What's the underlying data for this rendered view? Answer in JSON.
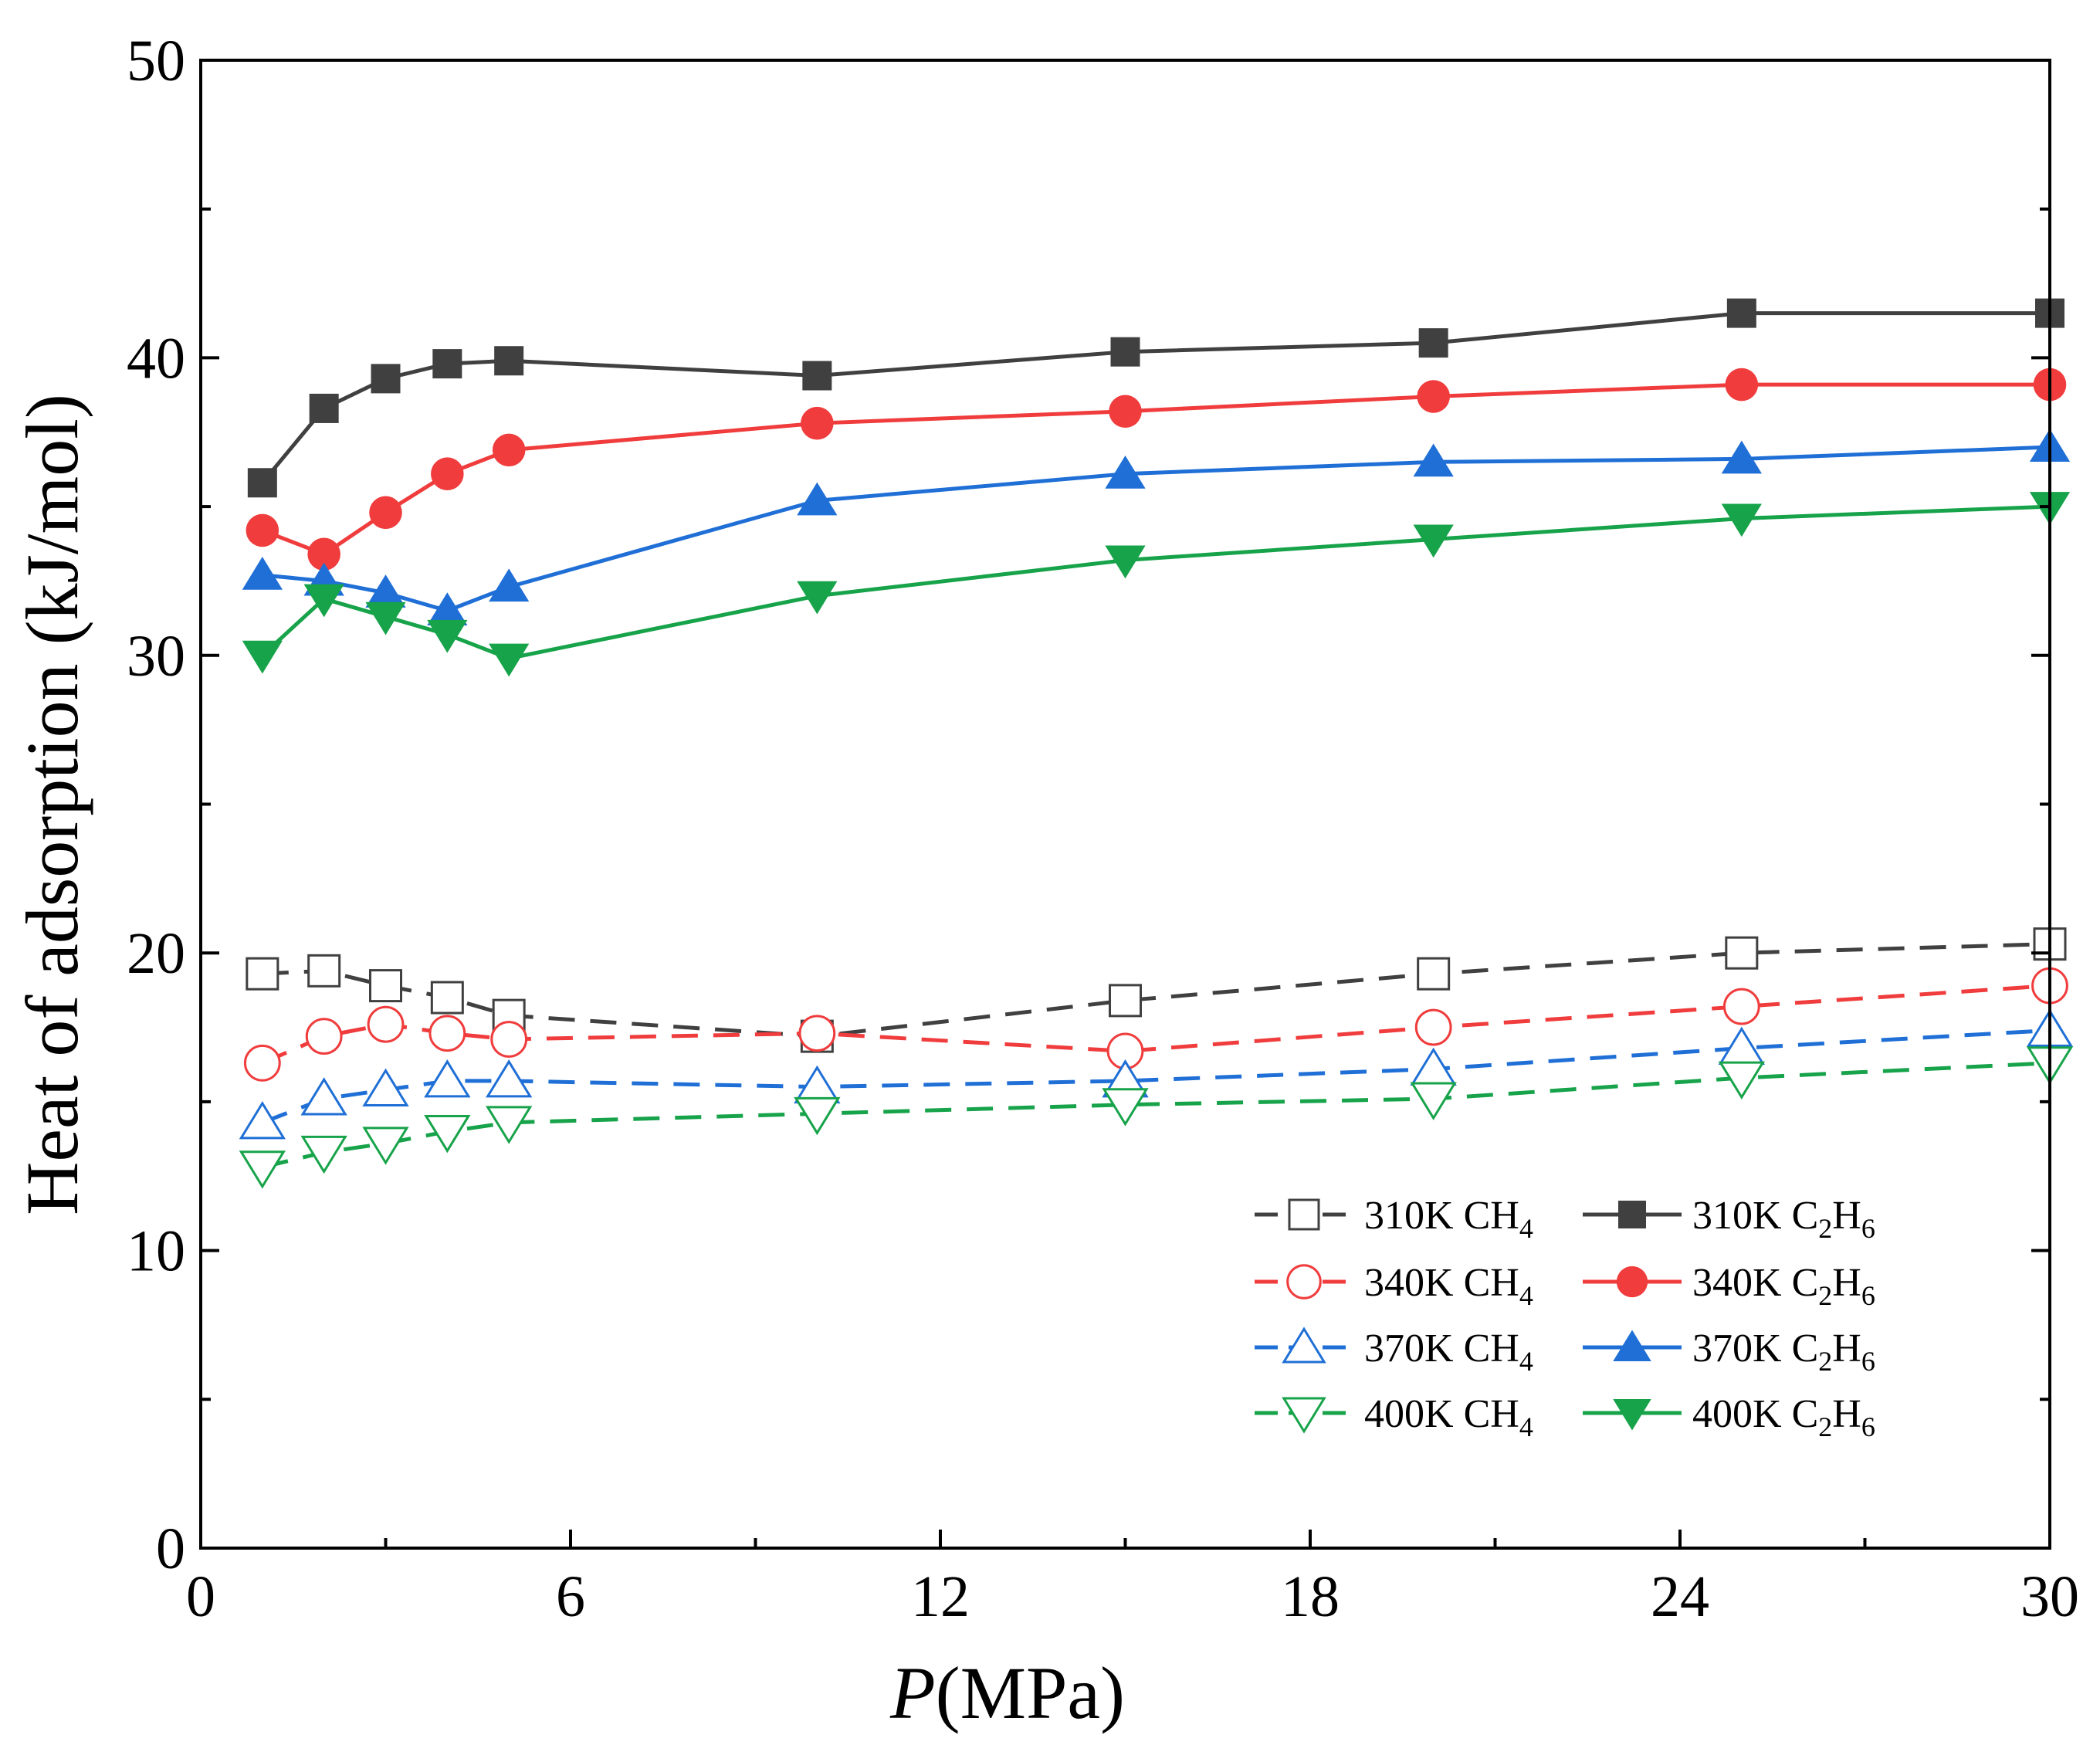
{
  "chart_data": {
    "type": "line",
    "title": "",
    "xlabel": "P",
    "xlabel_unit": "(MPa)",
    "ylabel": "Heat of adsorption (kJ/mol)",
    "xlim": [
      0,
      30
    ],
    "ylim": [
      0,
      50
    ],
    "x_ticks": [
      "0",
      "6",
      "12",
      "18",
      "24",
      "30"
    ],
    "y_ticks": [
      "0",
      "10",
      "20",
      "30",
      "40",
      "50"
    ],
    "grid": false,
    "legend_position": "bottom-right",
    "x": [
      1,
      2,
      3,
      4,
      5,
      10,
      15,
      20,
      25,
      30
    ],
    "series": [
      {
        "name": "310K CH4",
        "temp": "310K ",
        "gas_main": "CH",
        "sub1": "4",
        "mid": "",
        "sub2": "",
        "color": "#404040",
        "marker": "square",
        "filled": false,
        "dashed": true,
        "values": [
          19.3,
          19.4,
          18.9,
          18.5,
          17.9,
          17.2,
          18.4,
          19.3,
          20.0,
          20.3
        ]
      },
      {
        "name": "340K CH4",
        "temp": "340K ",
        "gas_main": "CH",
        "sub1": "4",
        "mid": "",
        "sub2": "",
        "color": "#f03c3c",
        "marker": "circle",
        "filled": false,
        "dashed": true,
        "values": [
          16.3,
          17.2,
          17.6,
          17.3,
          17.1,
          17.3,
          16.7,
          17.5,
          18.2,
          18.9
        ]
      },
      {
        "name": "370K CH4",
        "temp": "370K ",
        "gas_main": "CH",
        "sub1": "4",
        "mid": "",
        "sub2": "",
        "color": "#1f6fd6",
        "marker": "triangle-up",
        "filled": false,
        "dashed": true,
        "values": [
          14.3,
          15.1,
          15.4,
          15.7,
          15.7,
          15.5,
          15.7,
          16.1,
          16.8,
          17.4
        ]
      },
      {
        "name": "400K CH4",
        "temp": "400K ",
        "gas_main": "CH",
        "sub1": "4",
        "mid": "",
        "sub2": "",
        "color": "#17a34a",
        "marker": "triangle-down",
        "filled": false,
        "dashed": true,
        "values": [
          12.8,
          13.3,
          13.6,
          14.0,
          14.3,
          14.6,
          14.9,
          15.1,
          15.8,
          16.3
        ]
      },
      {
        "name": "310K C2H6",
        "temp": "310K ",
        "gas_main": "C",
        "sub1": "2",
        "mid": "H",
        "sub2": "6",
        "color": "#404040",
        "marker": "square",
        "filled": true,
        "dashed": false,
        "values": [
          35.8,
          38.3,
          39.3,
          39.8,
          39.9,
          39.4,
          40.2,
          40.5,
          41.5,
          41.5
        ]
      },
      {
        "name": "340K C2H6",
        "temp": "340K ",
        "gas_main": "C",
        "sub1": "2",
        "mid": "H",
        "sub2": "6",
        "color": "#f03c3c",
        "marker": "circle",
        "filled": true,
        "dashed": false,
        "values": [
          34.2,
          33.4,
          34.8,
          36.1,
          36.9,
          37.8,
          38.2,
          38.7,
          39.1,
          39.1
        ]
      },
      {
        "name": "370K C2H6",
        "temp": "370K ",
        "gas_main": "C",
        "sub1": "2",
        "mid": "H",
        "sub2": "6",
        "color": "#1f6fd6",
        "marker": "triangle-up",
        "filled": true,
        "dashed": false,
        "values": [
          32.7,
          32.5,
          32.1,
          31.5,
          32.3,
          35.2,
          36.1,
          36.5,
          36.6,
          37.0
        ]
      },
      {
        "name": "400K C2H6",
        "temp": "400K ",
        "gas_main": "C",
        "sub1": "2",
        "mid": "H",
        "sub2": "6",
        "color": "#17a34a",
        "marker": "triangle-down",
        "filled": true,
        "dashed": false,
        "values": [
          30.0,
          31.9,
          31.3,
          30.7,
          29.9,
          32.0,
          33.2,
          33.9,
          34.6,
          35.0
        ]
      }
    ]
  }
}
